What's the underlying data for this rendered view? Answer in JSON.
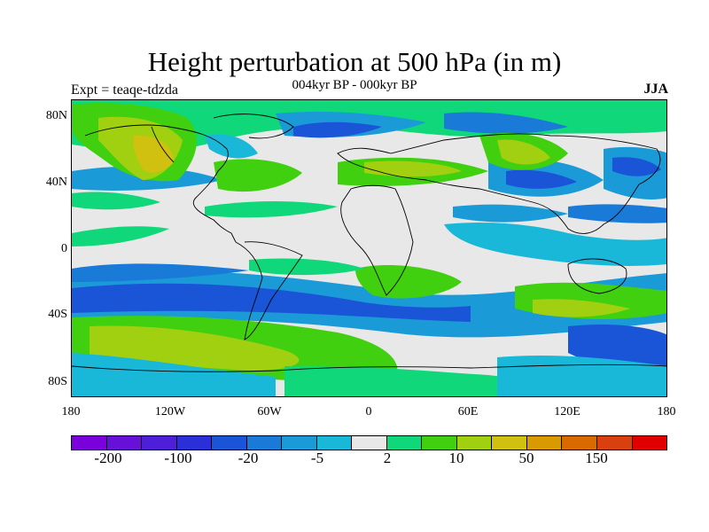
{
  "title": "Height perturbation at 500 hPa (in m)",
  "subtitle": "004kyr BP - 000kyr BP",
  "left_string": "Expt = teaqe-tdzda",
  "right_string": "JJA",
  "lat_labels": [
    "80N",
    "40N",
    "0",
    "40S",
    "80S"
  ],
  "lon_labels": [
    "180",
    "120W",
    "60W",
    "0",
    "60E",
    "120E",
    "180"
  ],
  "colorbar": {
    "colors": [
      "#7a00dc",
      "#6610d8",
      "#4e1fd8",
      "#2a2fd8",
      "#1a55d8",
      "#1a7ad8",
      "#1a9bd8",
      "#1ab8d8",
      "#e8e8e8",
      "#10d87a",
      "#40d010",
      "#a0d010",
      "#d0c010",
      "#d89a00",
      "#d86a00",
      "#d84010",
      "#e00000"
    ],
    "labels": [
      "-200",
      "-100",
      "-20",
      "-5",
      "2",
      "10",
      "50",
      "150"
    ]
  }
}
